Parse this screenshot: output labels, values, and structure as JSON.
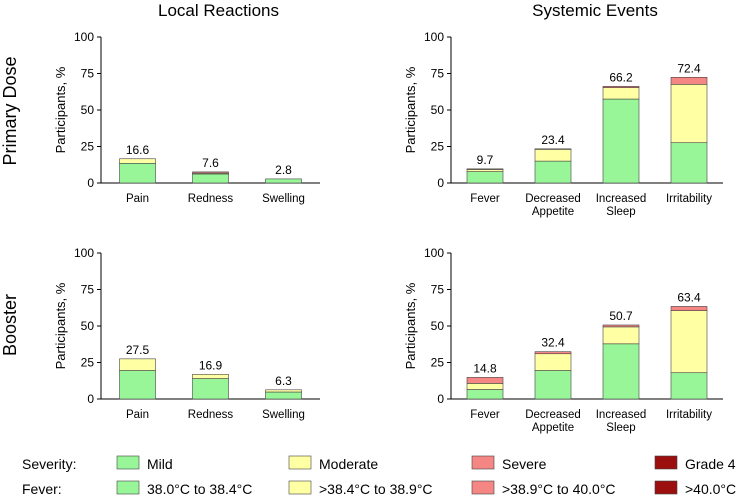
{
  "colors": {
    "mild": "#98f598",
    "moderate": "#ffffa4",
    "severe": "#f48683",
    "grade4": "#9b0f0f",
    "stroke": "#444444",
    "axis": "#000000"
  },
  "chart_data": [
    {
      "type": "bar",
      "id": "primary-local",
      "title": "Local Reactions",
      "row_label": "Primary Dose",
      "ylabel": "Participants, %",
      "ylim": [
        0,
        100
      ],
      "yticks": [
        0,
        25,
        50,
        75,
        100
      ],
      "categories": [
        "Pain",
        "Redness",
        "Swelling"
      ],
      "totals": [
        16.6,
        7.6,
        2.8
      ],
      "total_labels": [
        "16.6",
        "7.6",
        "2.8"
      ],
      "series": [
        {
          "name": "Mild",
          "values": [
            13.5,
            6.2,
            2.8
          ]
        },
        {
          "name": "Moderate",
          "values": [
            3.1,
            0.6,
            0.0
          ]
        },
        {
          "name": "Severe",
          "values": [
            0.0,
            0.8,
            0.0
          ]
        },
        {
          "name": "Grade 4",
          "values": [
            0.0,
            0.0,
            0.0
          ]
        }
      ]
    },
    {
      "type": "bar",
      "id": "primary-systemic",
      "title": "Systemic Events",
      "row_label": "Primary Dose",
      "ylabel": "Participants, %",
      "ylim": [
        0,
        100
      ],
      "yticks": [
        0,
        25,
        50,
        75,
        100
      ],
      "categories": [
        "Fever",
        "Decreased\nAppetite",
        "Increased\nSleep",
        "Irritability"
      ],
      "totals": [
        9.7,
        23.4,
        66.2,
        72.4
      ],
      "total_labels": [
        "9.7",
        "23.4",
        "66.2",
        "72.4"
      ],
      "series": [
        {
          "name": "Mild",
          "values": [
            7.8,
            15.0,
            57.5,
            27.6
          ]
        },
        {
          "name": "Moderate",
          "values": [
            1.5,
            8.2,
            7.8,
            40.0
          ]
        },
        {
          "name": "Severe",
          "values": [
            0.4,
            0.2,
            0.9,
            4.8
          ]
        },
        {
          "name": "Grade 4",
          "values": [
            0.0,
            0.0,
            0.0,
            0.0
          ]
        }
      ]
    },
    {
      "type": "bar",
      "id": "booster-local",
      "title": "",
      "row_label": "Booster",
      "ylabel": "Participants, %",
      "ylim": [
        0,
        100
      ],
      "yticks": [
        0,
        25,
        50,
        75,
        100
      ],
      "categories": [
        "Pain",
        "Redness",
        "Swelling"
      ],
      "totals": [
        27.5,
        16.9,
        6.3
      ],
      "total_labels": [
        "27.5",
        "16.9",
        "6.3"
      ],
      "series": [
        {
          "name": "Mild",
          "values": [
            19.5,
            14.0,
            4.8
          ]
        },
        {
          "name": "Moderate",
          "values": [
            8.0,
            2.9,
            1.5
          ]
        },
        {
          "name": "Severe",
          "values": [
            0.0,
            0.0,
            0.0
          ]
        },
        {
          "name": "Grade 4",
          "values": [
            0.0,
            0.0,
            0.0
          ]
        }
      ]
    },
    {
      "type": "bar",
      "id": "booster-systemic",
      "title": "",
      "row_label": "Booster",
      "ylabel": "Participants, %",
      "ylim": [
        0,
        100
      ],
      "yticks": [
        0,
        25,
        50,
        75,
        100
      ],
      "categories": [
        "Fever",
        "Decreased\nAppetite",
        "Increased\nSleep",
        "Irritability"
      ],
      "totals": [
        14.8,
        32.4,
        50.7,
        63.4
      ],
      "total_labels": [
        "14.8",
        "32.4",
        "50.7",
        "63.4"
      ],
      "series": [
        {
          "name": "Mild",
          "values": [
            6.5,
            19.5,
            37.8,
            18.0
          ]
        },
        {
          "name": "Moderate",
          "values": [
            4.2,
            11.5,
            11.6,
            42.5
          ]
        },
        {
          "name": "Severe",
          "values": [
            4.1,
            1.4,
            1.3,
            2.9
          ]
        },
        {
          "name": "Grade 4",
          "values": [
            0.0,
            0.0,
            0.0,
            0.0
          ]
        }
      ]
    }
  ],
  "legend": {
    "severity_label": "Severity:",
    "fever_label": "Fever:",
    "severity_items": [
      {
        "label": "Mild",
        "color_key": "mild"
      },
      {
        "label": "Moderate",
        "color_key": "moderate"
      },
      {
        "label": "Severe",
        "color_key": "severe"
      },
      {
        "label": "Grade 4",
        "color_key": "grade4"
      }
    ],
    "fever_items": [
      {
        "label": "38.0°C to 38.4°C",
        "color_key": "mild"
      },
      {
        "label": ">38.4°C to 38.9°C",
        "color_key": "moderate"
      },
      {
        "label": ">38.9°C to 40.0°C",
        "color_key": "severe"
      },
      {
        "label": ">40.0°C",
        "color_key": "grade4"
      }
    ]
  }
}
